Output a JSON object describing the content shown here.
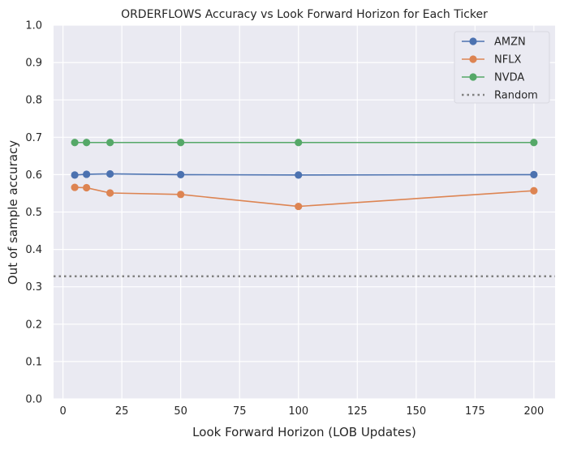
{
  "chart_data": {
    "type": "line",
    "title": "ORDERFLOWS Accuracy vs Look Forward Horizon for Each Ticker",
    "xlabel": "Look Forward Horizon (LOB Updates)",
    "ylabel": "Out of sample accuracy",
    "xlim": [
      -4,
      209
    ],
    "ylim": [
      0,
      1
    ],
    "xticks": [
      0,
      25,
      50,
      75,
      100,
      125,
      150,
      175,
      200
    ],
    "yticks": [
      0.0,
      0.1,
      0.2,
      0.3,
      0.4,
      0.5,
      0.6,
      0.7,
      0.8,
      0.9,
      1.0
    ],
    "xtick_labels": [
      "0",
      "25",
      "50",
      "75",
      "100",
      "125",
      "150",
      "175",
      "200"
    ],
    "ytick_labels": [
      "0.0",
      "0.1",
      "0.2",
      "0.3",
      "0.4",
      "0.5",
      "0.6",
      "0.7",
      "0.8",
      "0.9",
      "1.0"
    ],
    "grid": true,
    "legend_position": "top-right",
    "x": [
      5,
      10,
      20,
      50,
      100,
      200
    ],
    "series": [
      {
        "name": "AMZN",
        "color": "#4c72b0",
        "values": [
          0.599,
          0.601,
          0.602,
          0.6,
          0.599,
          0.6
        ]
      },
      {
        "name": "NFLX",
        "color": "#dd8452",
        "values": [
          0.566,
          0.565,
          0.551,
          0.547,
          0.515,
          0.557
        ]
      },
      {
        "name": "NVDA",
        "color": "#55a868",
        "values": [
          0.686,
          0.686,
          0.686,
          0.686,
          0.686,
          0.686
        ]
      }
    ],
    "reference_line": {
      "name": "Random",
      "value": 0.328,
      "color": "#808080",
      "style": "dotted"
    }
  }
}
